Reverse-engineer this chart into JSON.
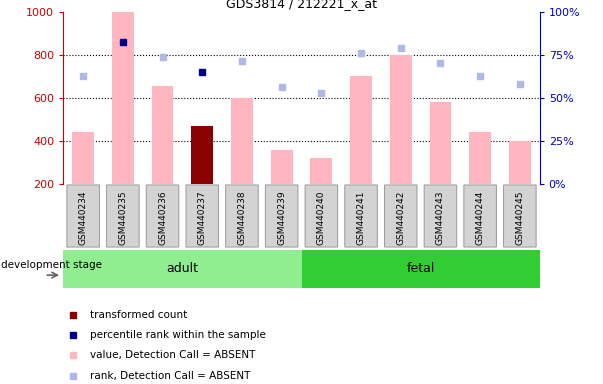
{
  "title": "GDS3814 / 212221_x_at",
  "samples": [
    "GSM440234",
    "GSM440235",
    "GSM440236",
    "GSM440237",
    "GSM440238",
    "GSM440239",
    "GSM440240",
    "GSM440241",
    "GSM440242",
    "GSM440243",
    "GSM440244",
    "GSM440245"
  ],
  "bar_values": [
    440,
    1000,
    655,
    470,
    600,
    358,
    320,
    700,
    800,
    580,
    443,
    400
  ],
  "bar_colors": [
    "#ffb6c1",
    "#ffb6c1",
    "#ffb6c1",
    "#8b0000",
    "#ffb6c1",
    "#ffb6c1",
    "#ffb6c1",
    "#ffb6c1",
    "#ffb6c1",
    "#ffb6c1",
    "#ffb6c1",
    "#ffb6c1"
  ],
  "rank_dots": [
    700,
    860,
    790,
    720,
    770,
    650,
    625,
    810,
    830,
    760,
    700,
    665
  ],
  "rank_dot_colors": [
    "#b0b8e8",
    "#00008b",
    "#b0b8e8",
    "#00008b",
    "#b0b8e8",
    "#b0b8e8",
    "#b0b8e8",
    "#b0b8e8",
    "#b0b8e8",
    "#b0b8e8",
    "#b0b8e8",
    "#b0b8e8"
  ],
  "ylim_left": [
    200,
    1000
  ],
  "ylim_right": [
    0,
    100
  ],
  "yticks_left": [
    200,
    400,
    600,
    800,
    1000
  ],
  "yticks_right": [
    0,
    25,
    50,
    75,
    100
  ],
  "groups": [
    {
      "label": "adult",
      "start": 0,
      "end": 6,
      "color": "#90ee90"
    },
    {
      "label": "fetal",
      "start": 6,
      "end": 12,
      "color": "#32cd32"
    }
  ],
  "group_row_label": "development stage",
  "legend_items": [
    {
      "label": "transformed count",
      "color": "#8b0000"
    },
    {
      "label": "percentile rank within the sample",
      "color": "#00008b"
    },
    {
      "label": "value, Detection Call = ABSENT",
      "color": "#ffb6c1"
    },
    {
      "label": "rank, Detection Call = ABSENT",
      "color": "#b0b8e8"
    }
  ],
  "background_color": "#ffffff",
  "left_axis_color": "#cc0000",
  "right_axis_color": "#0000cc",
  "bar_bottom": 200,
  "dot_marker_size": 5,
  "tickbox_color": "#d3d3d3",
  "tickbox_edge": "#999999"
}
